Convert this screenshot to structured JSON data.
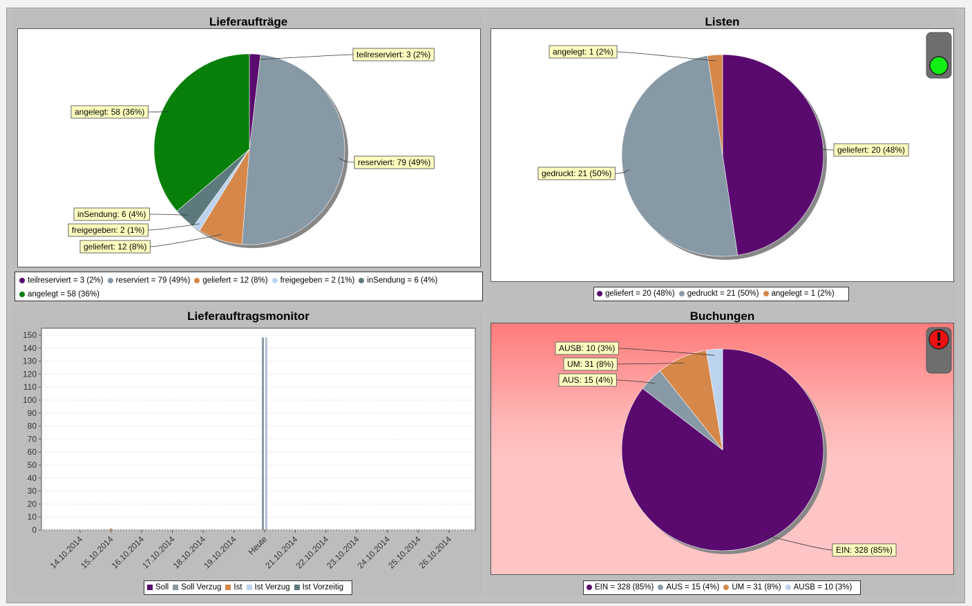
{
  "colors": {
    "teilreserviert": "#5a0a6e",
    "reserviert": "#8899a6",
    "geliefert": "#d5884a",
    "freigegeben": "#bcd3ee",
    "inSendung": "#5c7a7e",
    "angelegt": "#087f08",
    "gedruckt": "#8899a6",
    "purple": "#5a0a6e",
    "trafficGreen": "#11ee11",
    "trafficRed": "#ee1111"
  },
  "chart_data": [
    {
      "id": "lieferauftraege",
      "type": "pie",
      "title": "Lieferaufträge",
      "slices": [
        {
          "name": "teilreserviert",
          "value": 3,
          "pct": "2%",
          "label": "teilreserviert: 3 (2%)",
          "legend": "teilreserviert = 3 (2%)",
          "color": "#5a0a6e"
        },
        {
          "name": "reserviert",
          "value": 79,
          "pct": "49%",
          "label": "reserviert: 79 (49%)",
          "legend": "reserviert = 79 (49%)",
          "color": "#8899a6"
        },
        {
          "name": "geliefert",
          "value": 12,
          "pct": "8%",
          "label": "geliefert: 12 (8%)",
          "legend": "geliefert = 12 (8%)",
          "color": "#d5884a"
        },
        {
          "name": "freigegeben",
          "value": 2,
          "pct": "1%",
          "label": "freigegeben: 2 (1%)",
          "legend": "freigegeben = 2 (1%)",
          "color": "#bcd3ee"
        },
        {
          "name": "inSendung",
          "value": 6,
          "pct": "4%",
          "label": "inSendung: 6 (4%)",
          "legend": "inSendung = 6 (4%)",
          "color": "#5c7a7e"
        },
        {
          "name": "angelegt",
          "value": 58,
          "pct": "36%",
          "label": "angelegt: 58 (36%)",
          "legend": "angelegt = 58 (36%)",
          "color": "#087f08"
        }
      ]
    },
    {
      "id": "listen",
      "type": "pie",
      "title": "Listen",
      "status": "green",
      "slices": [
        {
          "name": "geliefert",
          "value": 20,
          "pct": "48%",
          "label": "geliefert: 20 (48%)",
          "legend": "geliefert = 20 (48%)",
          "color": "#5a0a6e"
        },
        {
          "name": "gedruckt",
          "value": 21,
          "pct": "50%",
          "label": "gedruckt: 21 (50%)",
          "legend": "gedruckt = 21 (50%)",
          "color": "#8899a6"
        },
        {
          "name": "angelegt",
          "value": 1,
          "pct": "2%",
          "label": "angelegt: 1 (2%)",
          "legend": "angelegt = 1 (2%)",
          "color": "#d5884a"
        }
      ]
    },
    {
      "id": "monitor",
      "type": "bar",
      "title": "Lieferauftragsmonitor",
      "categories": [
        "14.10.2014",
        "15.10.2014",
        "16.10.2014",
        "17.10.2014",
        "18.10.2014",
        "19.10.2014",
        "Heute",
        "21.10.2014",
        "22.10.2014",
        "23.10.2014",
        "24.10.2014",
        "25.10.2014",
        "26.10.2014"
      ],
      "ylim": [
        0,
        150
      ],
      "yticks": [
        0,
        10,
        20,
        30,
        40,
        50,
        60,
        70,
        80,
        90,
        100,
        110,
        120,
        130,
        140,
        150
      ],
      "series": [
        {
          "name": "Soll",
          "color": "#5a0a6e",
          "values": [
            0,
            0,
            0,
            0,
            0,
            0,
            0,
            0,
            0,
            0,
            0,
            0,
            0
          ]
        },
        {
          "name": "Soll Verzug",
          "color": "#8899a6",
          "values": [
            0,
            0,
            0,
            0,
            0,
            0,
            148,
            0,
            0,
            0,
            0,
            0,
            0
          ]
        },
        {
          "name": "Ist",
          "color": "#d5884a",
          "values": [
            0,
            1,
            0,
            0,
            0,
            0,
            0,
            0,
            0,
            0,
            0,
            0,
            0
          ]
        },
        {
          "name": "Ist Verzug",
          "color": "#bcd3ee",
          "values": [
            0,
            0,
            0,
            0,
            0,
            0,
            148,
            0,
            0,
            0,
            0,
            0,
            0
          ]
        },
        {
          "name": "Ist Vorzeitig",
          "color": "#5c7a7e",
          "values": [
            0,
            0,
            0,
            0,
            0,
            0,
            0,
            0,
            0,
            0,
            0,
            0,
            0
          ]
        }
      ]
    },
    {
      "id": "buchungen",
      "type": "pie",
      "title": "Buchungen",
      "status": "alert",
      "slices": [
        {
          "name": "EIN",
          "value": 328,
          "pct": "85%",
          "label": "EIN: 328 (85%)",
          "legend": "EIN = 328 (85%)",
          "color": "#5a0a6e"
        },
        {
          "name": "AUS",
          "value": 15,
          "pct": "4%",
          "label": "AUS: 15 (4%)",
          "legend": "AUS = 15 (4%)",
          "color": "#8899a6"
        },
        {
          "name": "UM",
          "value": 31,
          "pct": "8%",
          "label": "UM: 31 (8%)",
          "legend": "UM = 31 (8%)",
          "color": "#d5884a"
        },
        {
          "name": "AUSB",
          "value": 10,
          "pct": "3%",
          "label": "AUSB: 10 (3%)",
          "legend": "AUSB = 10 (3%)",
          "color": "#bcd3ee"
        }
      ]
    }
  ]
}
